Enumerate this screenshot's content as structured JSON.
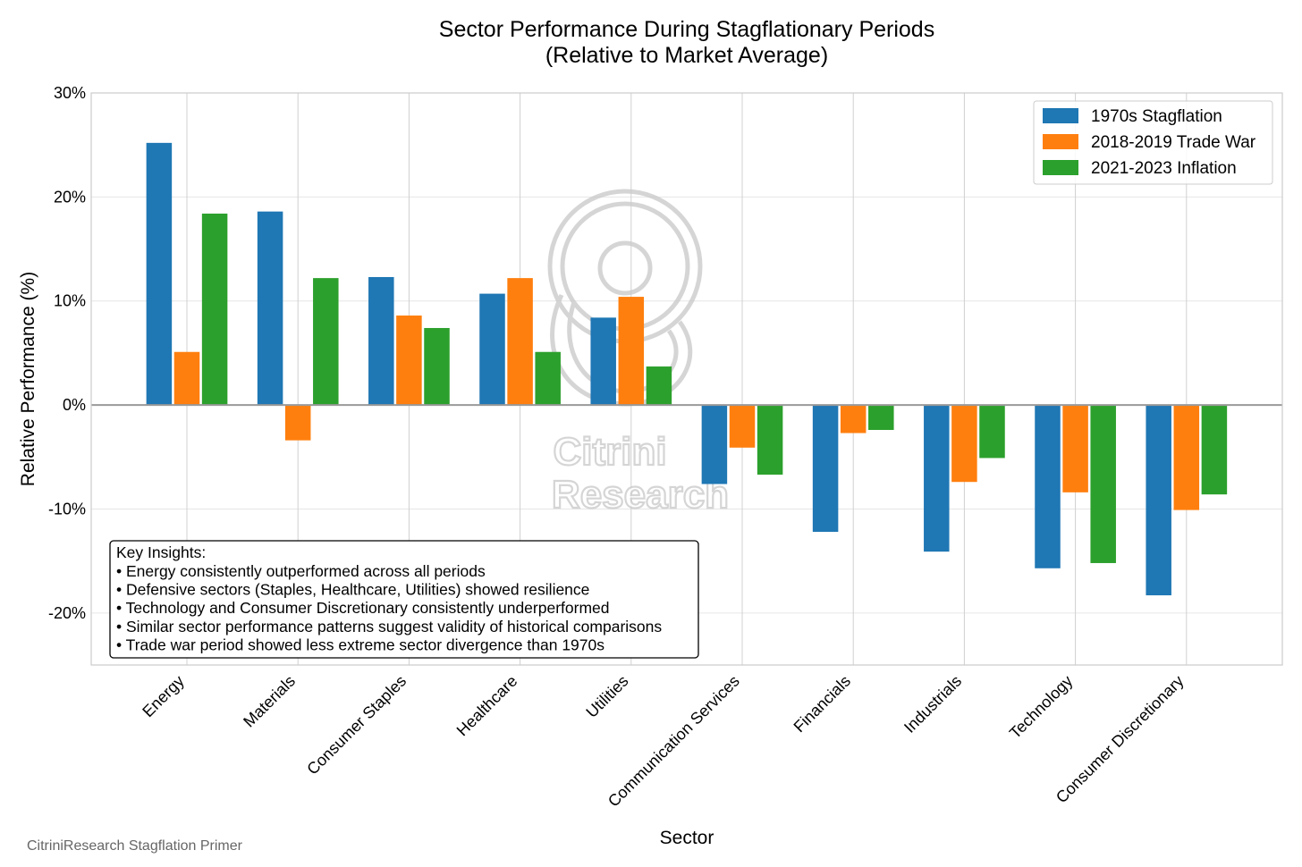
{
  "title_lines": [
    "Sector Performance During Stagflationary Periods",
    "(Relative to Market Average)"
  ],
  "watermark": {
    "line1": "Citrini",
    "line2": "Research"
  },
  "footer": "CitriniResearch Stagflation Primer",
  "colors": {
    "series": [
      "#1f77b4",
      "#ff7f0e",
      "#2ca02c"
    ],
    "grid": "#e6e6e6",
    "zero_line": "#999999",
    "frame": "#cccccc"
  },
  "chart_data": {
    "type": "bar",
    "title": "Sector Performance During Stagflationary Periods\n(Relative to Market Average)",
    "xlabel": "Sector",
    "ylabel": "Relative Performance (%)",
    "ylim": [
      -25,
      30
    ],
    "yticks": [
      -20,
      -10,
      0,
      10,
      20,
      30
    ],
    "ytick_labels": [
      "-20%",
      "-10%",
      "0%",
      "10%",
      "20%",
      "30%"
    ],
    "grid": true,
    "legend_position": "top-right",
    "categories": [
      "Energy",
      "Materials",
      "Consumer Staples",
      "Healthcare",
      "Utilities",
      "Communication Services",
      "Financials",
      "Industrials",
      "Technology",
      "Consumer Discretionary"
    ],
    "series": [
      {
        "name": "1970s Stagflation",
        "values": [
          25.2,
          18.6,
          12.3,
          10.7,
          8.4,
          -7.6,
          -12.2,
          -14.1,
          -15.7,
          -18.3
        ]
      },
      {
        "name": "2018-2019 Trade War",
        "values": [
          5.1,
          -3.4,
          8.6,
          12.2,
          10.4,
          -4.1,
          -2.7,
          -7.4,
          -8.4,
          -10.1
        ]
      },
      {
        "name": "2021-2023 Inflation",
        "values": [
          18.4,
          12.2,
          7.4,
          5.1,
          3.7,
          -6.7,
          -2.4,
          -5.1,
          -15.2,
          -8.6
        ]
      }
    ],
    "annotation": {
      "title": "Key Insights:",
      "lines": [
        "• Energy consistently outperformed across all periods",
        "• Defensive sectors (Staples, Healthcare, Utilities) showed resilience",
        "• Technology and Consumer Discretionary consistently underperformed",
        "• Similar sector performance patterns suggest validity of historical comparisons",
        "• Trade war period showed less extreme sector divergence than 1970s"
      ]
    }
  }
}
